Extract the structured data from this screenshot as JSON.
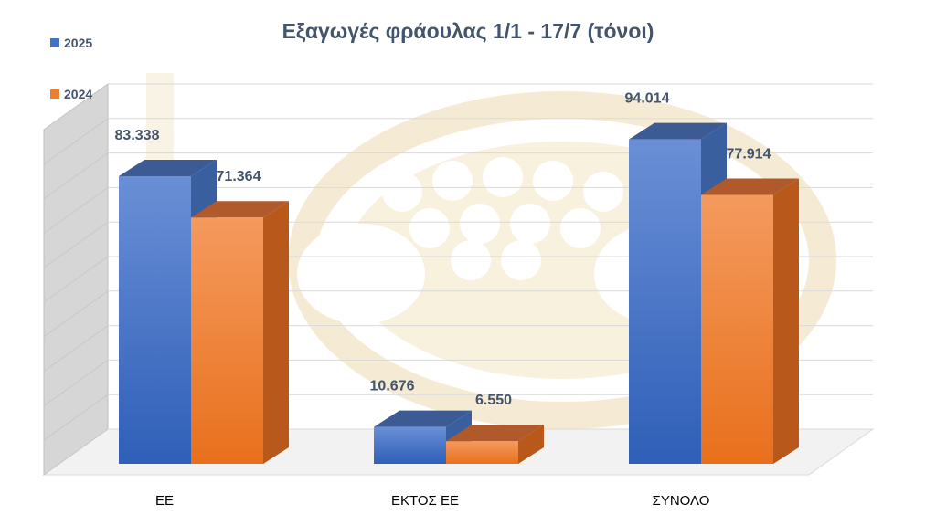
{
  "chart_data": {
    "type": "bar",
    "title": "Εξαγωγές φράουλας 1/1 -  17/7 (τόνοι)",
    "categories": [
      "ΕΕ",
      "ΕΚΤΟΣ ΕΕ",
      "ΣΥΝΟΛΟ"
    ],
    "series": [
      {
        "name": "2025",
        "values": [
          83338,
          10676,
          94014
        ],
        "labels": [
          "83.338",
          "10.676",
          "94.014"
        ],
        "color": "#4472c4"
      },
      {
        "name": "2024",
        "values": [
          71364,
          6550,
          77914
        ],
        "labels": [
          "71.364",
          "6.550",
          "77.914"
        ],
        "color": "#ed7d31"
      }
    ],
    "ylim": [
      0,
      100000
    ],
    "grid": true,
    "legend_position": "top-left",
    "style": "3d-column",
    "watermark": "logo"
  }
}
